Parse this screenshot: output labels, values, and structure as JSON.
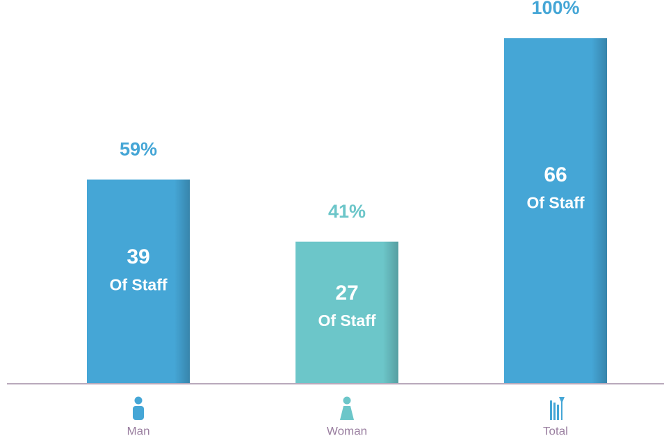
{
  "chart_data": {
    "type": "bar",
    "categories": [
      "Man",
      "Woman",
      "Total"
    ],
    "values": [
      59,
      41,
      100
    ],
    "value_labels": [
      "59%",
      "41%",
      "100%"
    ],
    "counts": [
      39,
      27,
      66
    ],
    "count_labels": [
      "Of Staff",
      "Of Staff",
      "Of Staff"
    ],
    "colors": [
      "#45a6d6",
      "#6cc6c9",
      "#45a6d6"
    ]
  }
}
